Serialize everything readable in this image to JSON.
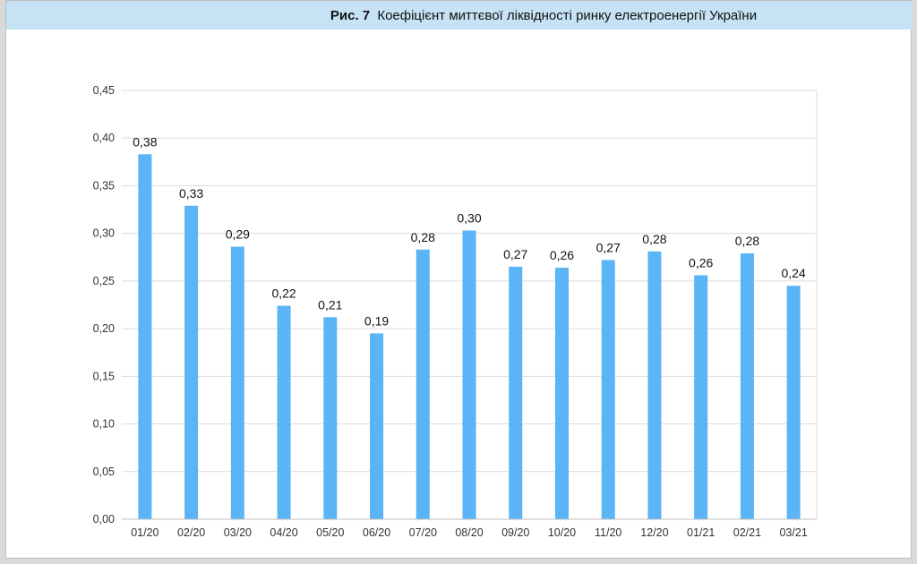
{
  "header": {
    "figure_label": "Рис. 7",
    "title": "Коефіцієнт миттєвої ліквідності ринку електроенергії України"
  },
  "colors": {
    "bar": "#5ab4f5",
    "grid": "#dcdcdc",
    "title_bg": "#c6e2f5"
  },
  "chart_data": {
    "type": "bar",
    "title": "Коефіцієнт миттєвої ліквідності ринку електроенергії України",
    "categories": [
      "01/20",
      "02/20",
      "03/20",
      "04/20",
      "05/20",
      "06/20",
      "07/20",
      "08/20",
      "09/20",
      "10/20",
      "11/20",
      "12/20",
      "01/21",
      "02/21",
      "03/21"
    ],
    "values": [
      0.383,
      0.329,
      0.286,
      0.224,
      0.212,
      0.195,
      0.283,
      0.303,
      0.265,
      0.264,
      0.272,
      0.281,
      0.256,
      0.279,
      0.245
    ],
    "data_labels": [
      "0,38",
      "0,33",
      "0,29",
      "0,22",
      "0,21",
      "0,19",
      "0,28",
      "0,30",
      "0,27",
      "0,26",
      "0,27",
      "0,28",
      "0,26",
      "0,28",
      "0,24"
    ],
    "ylim": [
      0,
      0.45
    ],
    "yticks": [
      0,
      0.05,
      0.1,
      0.15,
      0.2,
      0.25,
      0.3,
      0.35,
      0.4,
      0.45
    ],
    "ytick_labels": [
      "0,00",
      "0,05",
      "0,10",
      "0,15",
      "0,20",
      "0,25",
      "0,30",
      "0,35",
      "0,40",
      "0,45"
    ],
    "xlabel": "",
    "ylabel": "",
    "grid": true,
    "legend": "none"
  }
}
